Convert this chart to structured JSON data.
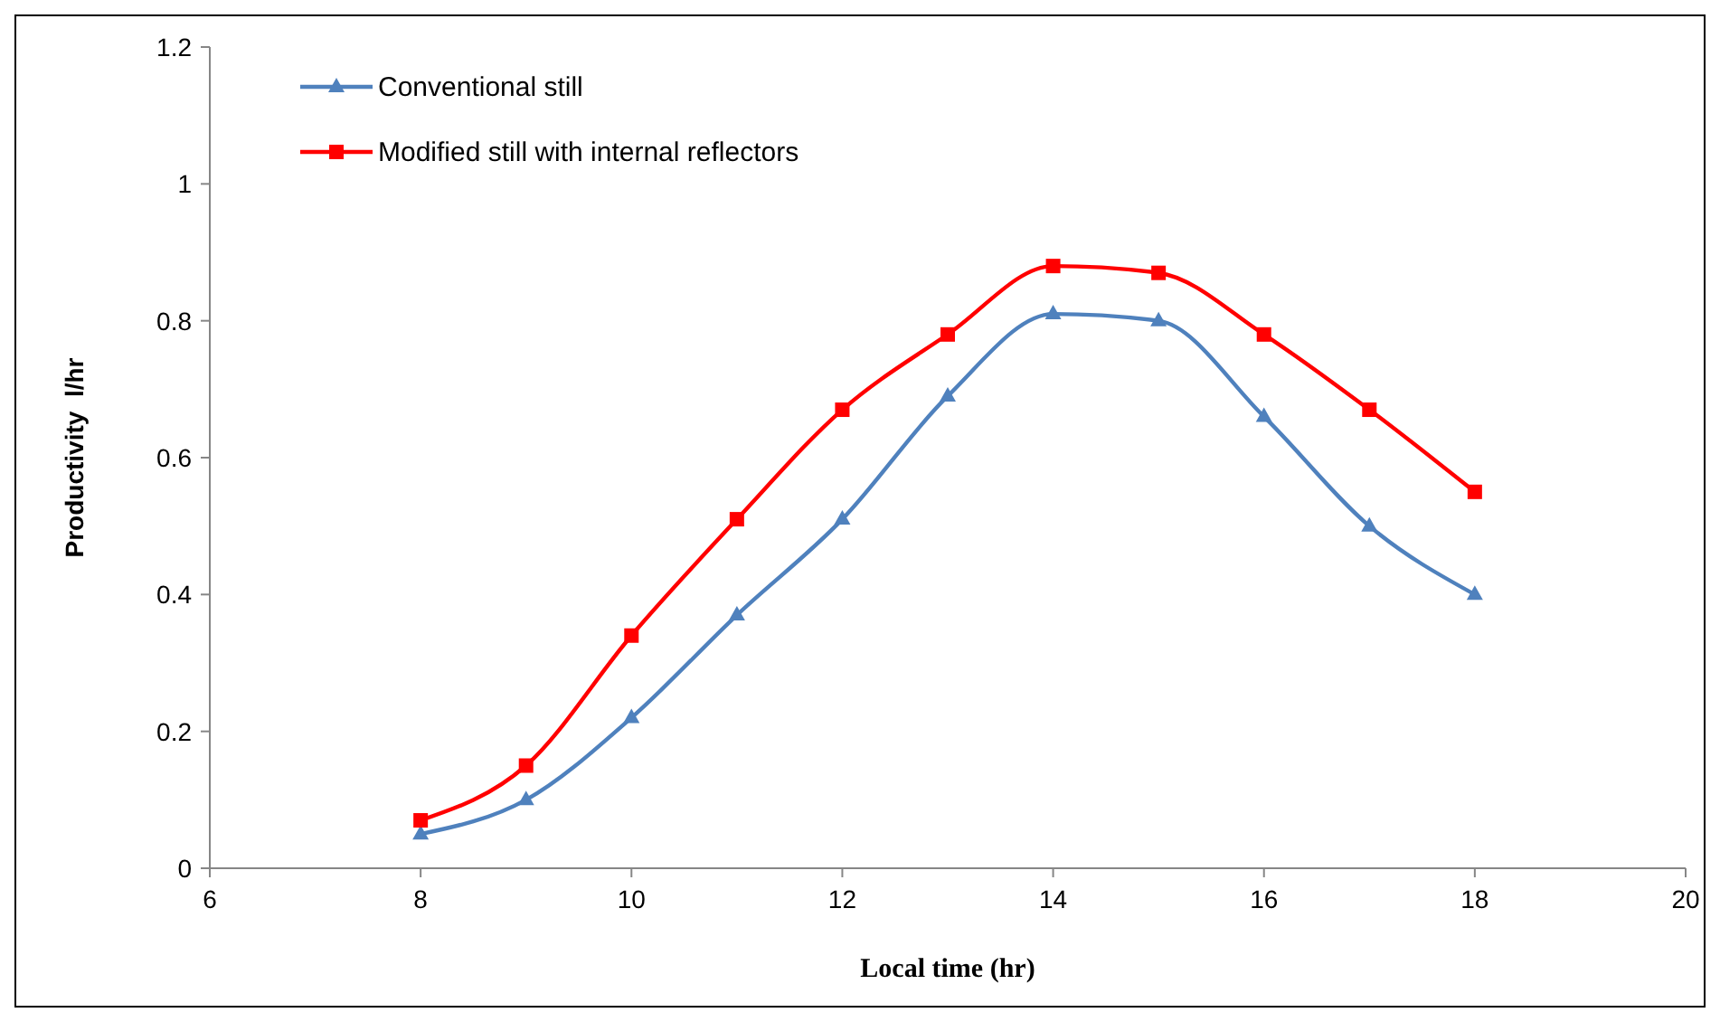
{
  "chart_data": {
    "type": "line",
    "xlabel": "Local time (hr)",
    "ylabel": "Productivity  l/hr",
    "x": [
      8,
      9,
      10,
      11,
      12,
      13,
      14,
      15,
      16,
      17,
      18
    ],
    "series": [
      {
        "name": "Conventional still",
        "color": "#4f81bd",
        "marker": "triangle",
        "values": [
          0.05,
          0.1,
          0.22,
          0.37,
          0.51,
          0.69,
          0.81,
          0.8,
          0.66,
          0.5,
          0.4
        ]
      },
      {
        "name": "Modified still with internal reflectors",
        "color": "#ff0000",
        "marker": "square",
        "values": [
          0.07,
          0.15,
          0.34,
          0.51,
          0.67,
          0.78,
          0.88,
          0.87,
          0.78,
          0.67,
          0.55
        ]
      }
    ],
    "xlim": [
      6,
      20
    ],
    "xticks": [
      6,
      8,
      10,
      12,
      14,
      16,
      18,
      20
    ],
    "ylim": [
      0,
      1.2
    ],
    "yticks": [
      0,
      0.2,
      0.4,
      0.6,
      0.8,
      1,
      1.2
    ],
    "grid": false,
    "legend": "top left",
    "line_style": "solid"
  }
}
